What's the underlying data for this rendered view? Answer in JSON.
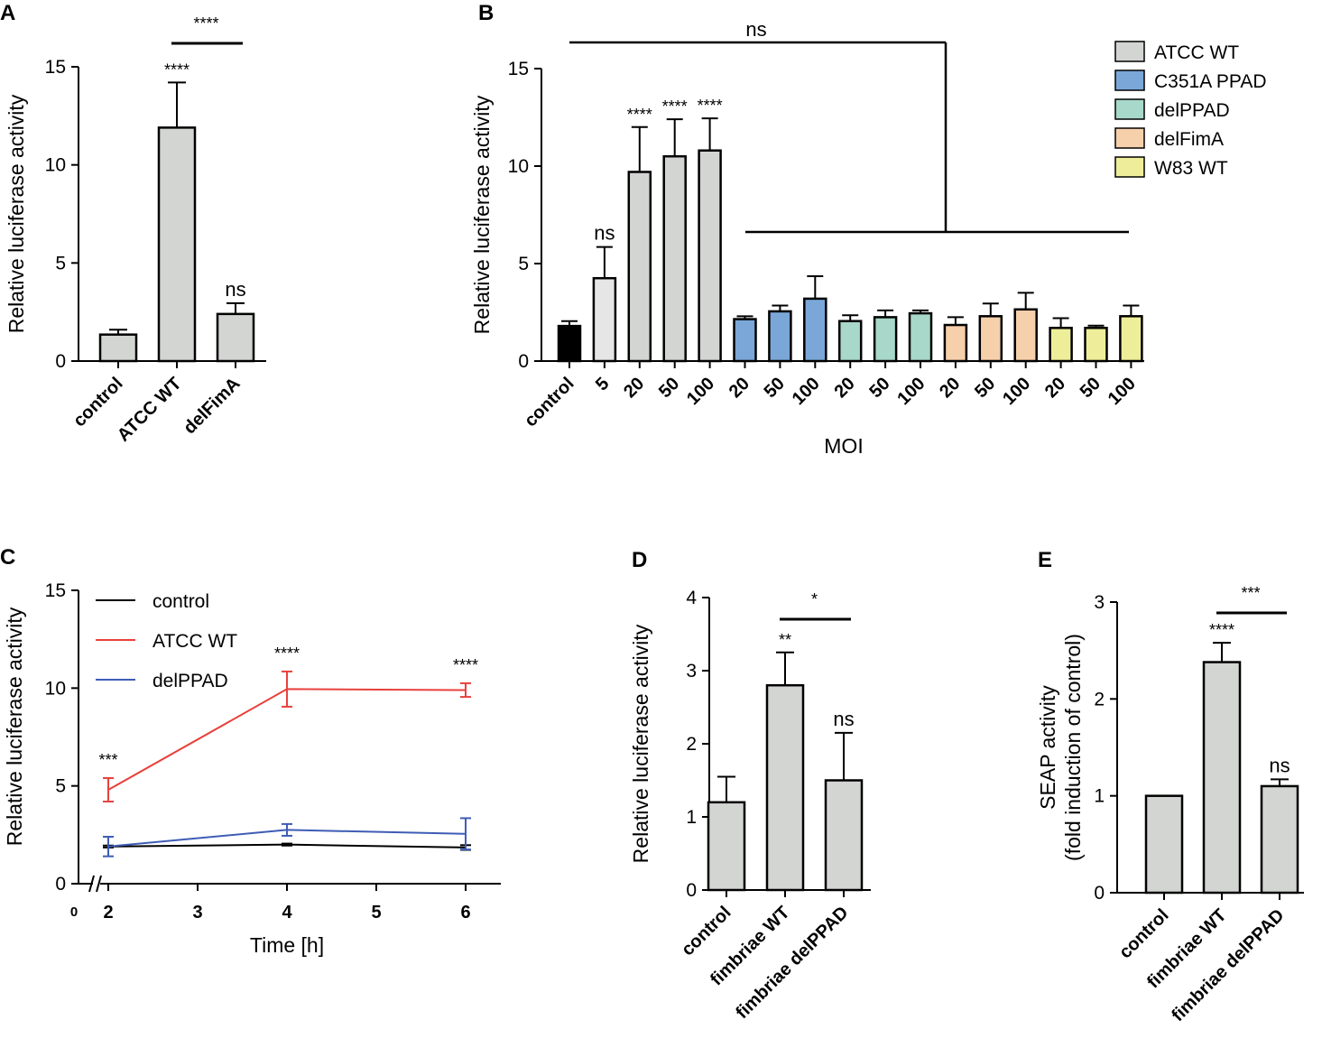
{
  "chart_data": [
    {
      "panel": "A",
      "type": "bar",
      "ylabel": "Relative luciferase activity",
      "ylim": [
        0,
        15
      ],
      "yticks": [
        0,
        5,
        10,
        15
      ],
      "categories": [
        "control",
        "ATCC WT",
        "delFimA"
      ],
      "values": [
        1.35,
        11.9,
        2.4
      ],
      "errors": [
        0.25,
        2.3,
        0.55
      ],
      "colors": [
        "#d3d5d3",
        "#d3d5d3",
        "#d3d5d3"
      ],
      "bar_labels": [
        "",
        "****",
        "ns"
      ],
      "brackets": [
        {
          "from": 1,
          "to": 2,
          "label": "****"
        }
      ]
    },
    {
      "panel": "B",
      "type": "bar",
      "ylabel": "Relative luciferase activity",
      "xlabel": "MOI",
      "ylim": [
        0,
        15
      ],
      "yticks": [
        0,
        5,
        10,
        15
      ],
      "categories": [
        "control",
        "5",
        "20",
        "50",
        "100",
        "20",
        "50",
        "100",
        "20",
        "50",
        "100",
        "20",
        "50",
        "100",
        "20",
        "50",
        "100"
      ],
      "values": [
        1.8,
        4.25,
        9.7,
        10.5,
        10.8,
        2.15,
        2.55,
        3.2,
        2.05,
        2.25,
        2.45,
        1.85,
        2.3,
        2.65,
        1.7,
        1.7,
        2.3
      ],
      "errors": [
        0.25,
        1.6,
        2.3,
        1.9,
        1.65,
        0.15,
        0.3,
        1.15,
        0.3,
        0.35,
        0.15,
        0.4,
        0.65,
        0.85,
        0.5,
        0.12,
        0.55
      ],
      "colors": [
        "#000000",
        "#e6e6e6",
        "#d3d5d3",
        "#d3d5d3",
        "#d3d5d3",
        "#7aa7d8",
        "#7aa7d8",
        "#7aa7d8",
        "#a7d8c9",
        "#a7d8c9",
        "#a7d8c9",
        "#f6cfab",
        "#f6cfab",
        "#f6cfab",
        "#eeee9a",
        "#eeee9a",
        "#eeee9a"
      ],
      "bar_labels": [
        "",
        "ns",
        "****",
        "****",
        "****",
        "",
        "",
        "",
        "",
        "",
        "",
        "",
        "",
        "",
        "",
        "",
        ""
      ],
      "legend": [
        {
          "name": "ATCC WT",
          "color": "#d3d5d3"
        },
        {
          "name": "C351A PPAD",
          "color": "#7aa7d8"
        },
        {
          "name": "delPPAD",
          "color": "#a7d8c9"
        },
        {
          "name": "delFimA",
          "color": "#f6cfab"
        },
        {
          "name": "W83 WT",
          "color": "#eeee9a"
        }
      ],
      "bracket_label": "ns"
    },
    {
      "panel": "C",
      "type": "line",
      "ylabel": "Relative luciferase activity",
      "xlabel": "Time [h]",
      "ylim": [
        0,
        15
      ],
      "yticks": [
        0,
        5,
        10,
        15
      ],
      "xticks": [
        0,
        2,
        3,
        4,
        5,
        6
      ],
      "series": [
        {
          "name": "control",
          "color": "#000000",
          "x": [
            2,
            4,
            6
          ],
          "y": [
            1.9,
            2.0,
            1.85
          ],
          "err": [
            0.05,
            0.05,
            0.12
          ]
        },
        {
          "name": "ATCC WT",
          "color": "#e8413c",
          "x": [
            2,
            4,
            6
          ],
          "y": [
            4.8,
            9.95,
            9.9
          ],
          "err": [
            0.6,
            0.9,
            0.35
          ]
        },
        {
          "name": "delPPAD",
          "color": "#3f5cb6",
          "x": [
            2,
            4,
            6
          ],
          "y": [
            1.9,
            2.75,
            2.55
          ],
          "err": [
            0.5,
            0.3,
            0.8
          ]
        }
      ],
      "point_labels": [
        {
          "x": 2,
          "label": "***"
        },
        {
          "x": 4,
          "label": "****"
        },
        {
          "x": 6,
          "label": "****"
        }
      ]
    },
    {
      "panel": "D",
      "type": "bar",
      "ylabel": "Relative luciferase activity",
      "ylim": [
        0,
        4
      ],
      "yticks": [
        0,
        1,
        2,
        3,
        4
      ],
      "categories": [
        "control",
        "fimbriae WT",
        "fimbriae delPPAD"
      ],
      "values": [
        1.2,
        2.8,
        1.5
      ],
      "errors": [
        0.35,
        0.45,
        0.65
      ],
      "colors": [
        "#d3d5d3",
        "#d3d5d3",
        "#d3d5d3"
      ],
      "bar_labels": [
        "",
        "**",
        "ns"
      ],
      "brackets": [
        {
          "from": 1,
          "to": 2,
          "label": "*"
        }
      ]
    },
    {
      "panel": "E",
      "type": "bar",
      "ylabel": [
        "SEAP activity",
        "(fold induction of control)"
      ],
      "ylim": [
        0,
        3
      ],
      "yticks": [
        0,
        1,
        2,
        3
      ],
      "categories": [
        "control",
        "fimbriae WT",
        "fimbriae delPPAD"
      ],
      "values": [
        1.0,
        2.38,
        1.1
      ],
      "errors": [
        0.0,
        0.2,
        0.07
      ],
      "colors": [
        "#d3d5d3",
        "#d3d5d3",
        "#d3d5d3"
      ],
      "bar_labels": [
        "",
        "****",
        "ns"
      ],
      "brackets": [
        {
          "from": 1,
          "to": 2,
          "label": "***"
        }
      ]
    }
  ]
}
